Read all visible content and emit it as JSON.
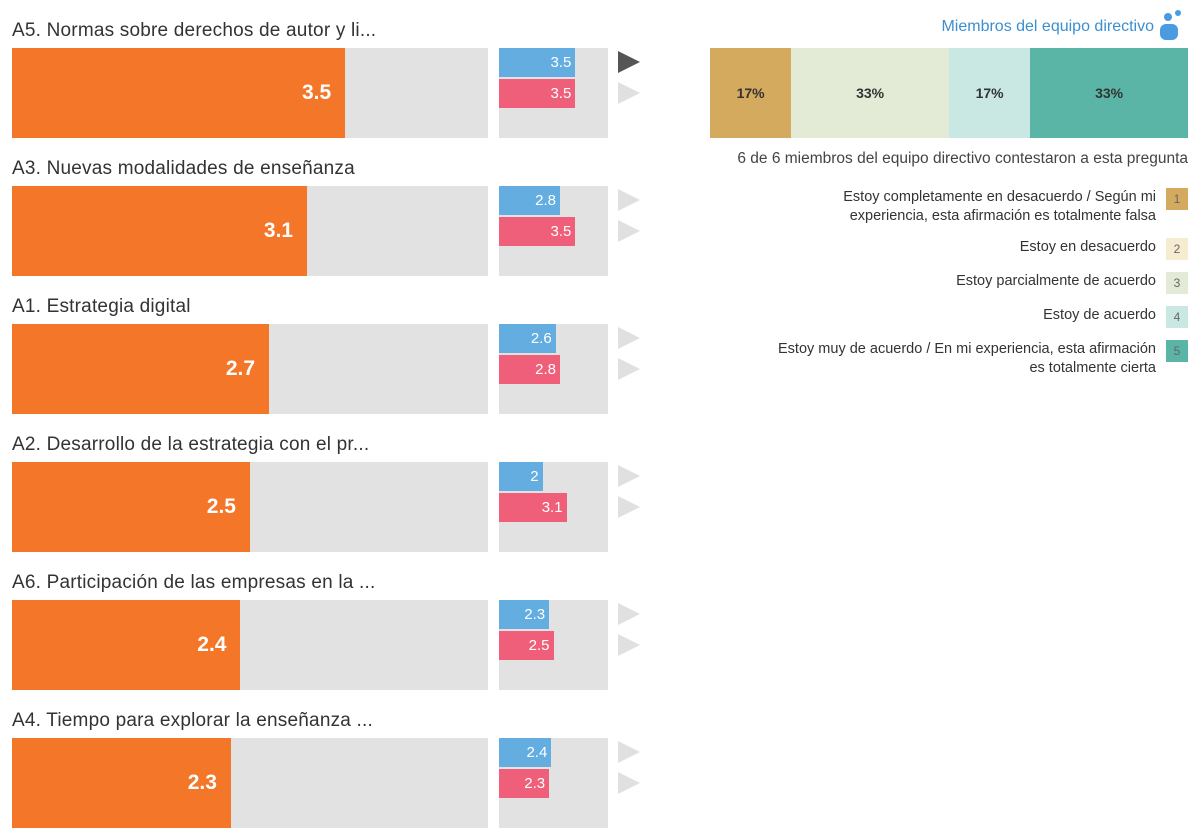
{
  "rows": [
    {
      "label": "A5. Normas sobre derechos de autor y li...",
      "value": 3.5,
      "blue": 3.5,
      "pink": 3.5
    },
    {
      "label": "A3. Nuevas modalidades de enseñanza",
      "value": 3.1,
      "blue": 2.8,
      "pink": 3.5
    },
    {
      "label": "A1. Estrategia digital",
      "value": 2.7,
      "blue": 2.6,
      "pink": 2.8
    },
    {
      "label": "A2. Desarrollo de la estrategia con el pr...",
      "value": 2.5,
      "blue": 2,
      "pink": 3.1
    },
    {
      "label": "A6. Participación de las empresas en la ...",
      "value": 2.4,
      "blue": 2.3,
      "pink": 2.5
    },
    {
      "label": "A4. Tiempo para explorar la enseñanza ...",
      "value": 2.3,
      "blue": 2.4,
      "pink": 2.3
    }
  ],
  "panel": {
    "title": "Miembros del equipo directivo",
    "segments": [
      {
        "value": 17,
        "label": "17%",
        "color": "#d4aa5f"
      },
      {
        "value": 33,
        "label": "33%",
        "color": "#e3ead6"
      },
      {
        "value": 17,
        "label": "17%",
        "color": "#c9e8e4"
      },
      {
        "value": 33,
        "label": "33%",
        "color": "#5bb5a6"
      }
    ],
    "note": "6 de 6 miembros del equipo directivo contestaron a esta pregunta",
    "legend": [
      {
        "text": "Estoy completamente en desacuerdo / Según mi experiencia, esta afirmación es totalmente falsa",
        "code": 1,
        "color": "#d4aa5f"
      },
      {
        "text": "Estoy en desacuerdo",
        "code": 2,
        "color": "#f5ecd2"
      },
      {
        "text": "Estoy parcialmente de acuerdo",
        "code": 3,
        "color": "#e3ead6"
      },
      {
        "text": "Estoy de acuerdo",
        "code": 4,
        "color": "#c9e8e4"
      },
      {
        "text": "Estoy muy de acuerdo / En mi experiencia, esta afirmación es totalmente cierta",
        "code": 5,
        "color": "#5bb5a6"
      }
    ]
  }
}
